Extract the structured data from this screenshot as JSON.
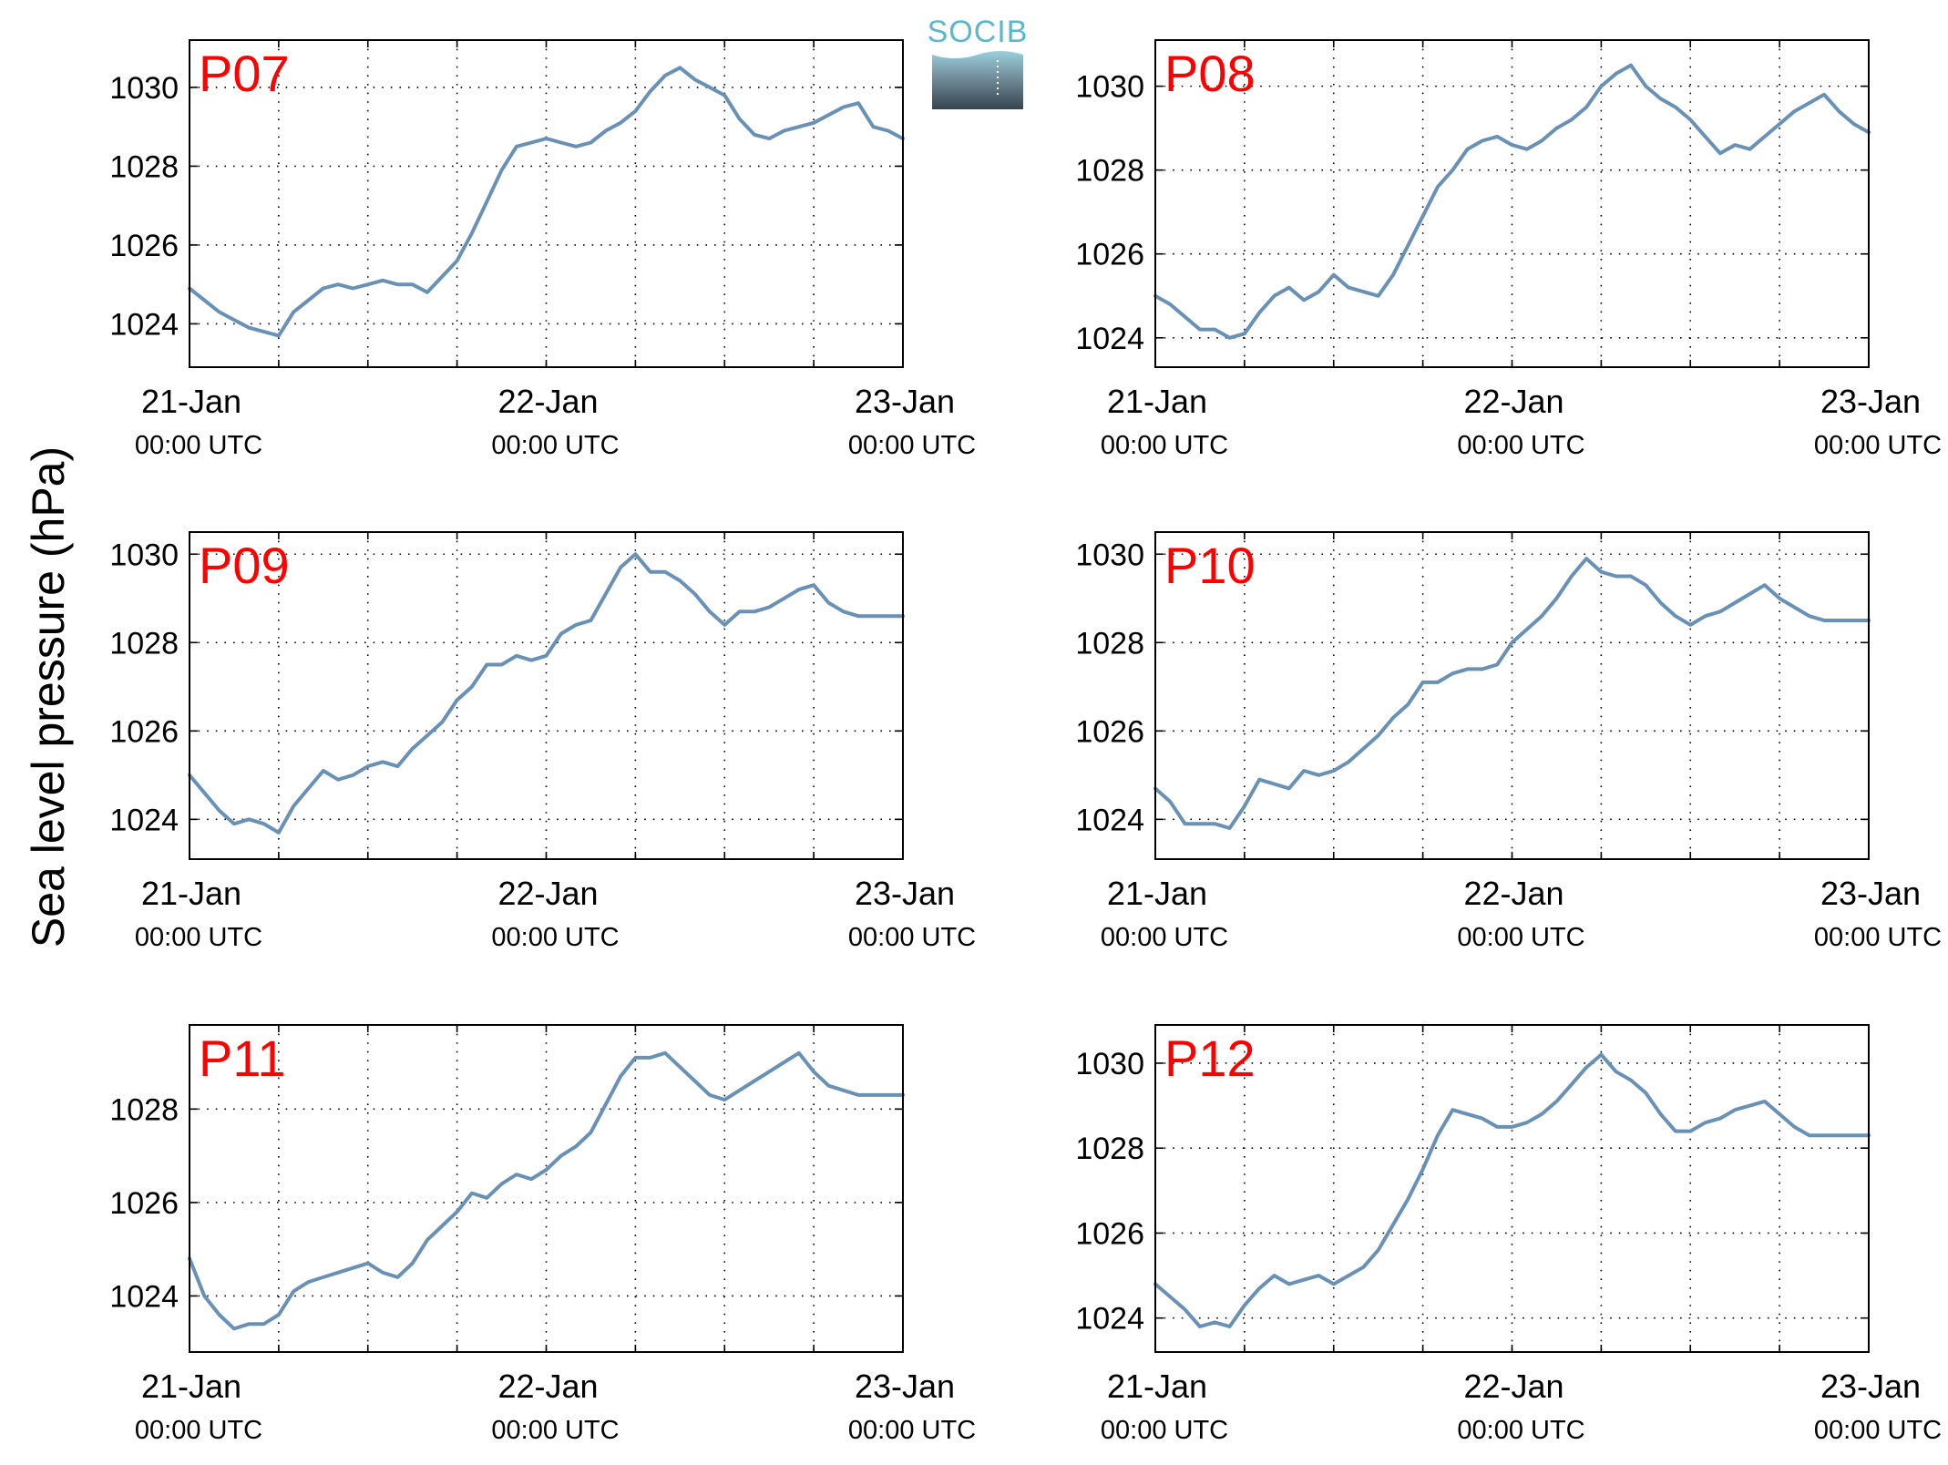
{
  "figure": {
    "ylabel": "Sea level pressure (hPa)",
    "logo_text": "SOCIB",
    "series_color": "#6891b5",
    "label_color": "#ff0000",
    "logo_colors": {
      "text": "#5ab8cc",
      "top": "#9ad0de",
      "mid": "#6f8694",
      "bottom": "#34454f"
    }
  },
  "chart_data": [
    {
      "type": "line",
      "label": "P07",
      "x_ticks": [
        {
          "date": "21-Jan",
          "time": "00:00 UTC"
        },
        {
          "date": "22-Jan",
          "time": "00:00 UTC"
        },
        {
          "date": "23-Jan",
          "time": "00:00 UTC"
        }
      ],
      "xlim": [
        "2014-01-21 00:00",
        "2014-01-23 00:00"
      ],
      "ylim": [
        1022.9,
        1031.2
      ],
      "yticks": [
        1024,
        1026,
        1028,
        1030
      ],
      "grid": true,
      "x_hours": [
        0,
        1,
        2,
        3,
        4,
        5,
        6,
        7,
        8,
        9,
        10,
        11,
        12,
        13,
        14,
        15,
        16,
        17,
        18,
        19,
        20,
        21,
        22,
        23,
        24,
        25,
        26,
        27,
        28,
        29,
        30,
        31,
        32,
        33,
        34,
        35,
        36,
        37,
        38,
        39,
        40,
        41,
        42,
        43,
        44,
        45,
        46,
        47,
        48
      ],
      "y": [
        1024.9,
        1024.6,
        1024.3,
        1024.1,
        1023.9,
        1023.8,
        1023.7,
        1024.3,
        1024.6,
        1024.9,
        1025.0,
        1024.9,
        1025.0,
        1025.1,
        1025.0,
        1025.0,
        1024.8,
        1025.2,
        1025.6,
        1026.3,
        1027.1,
        1027.9,
        1028.5,
        1028.6,
        1028.7,
        1028.6,
        1028.5,
        1028.6,
        1028.9,
        1029.1,
        1029.4,
        1029.9,
        1030.3,
        1030.5,
        1030.2,
        1030.0,
        1029.8,
        1029.2,
        1028.8,
        1028.7,
        1028.9,
        1029.0,
        1029.1,
        1029.3,
        1029.5,
        1029.6,
        1029.0,
        1028.9,
        1028.7
      ]
    },
    {
      "type": "line",
      "label": "P08",
      "x_ticks": [
        {
          "date": "21-Jan",
          "time": "00:00 UTC"
        },
        {
          "date": "22-Jan",
          "time": "00:00 UTC"
        },
        {
          "date": "23-Jan",
          "time": "00:00 UTC"
        }
      ],
      "xlim": [
        "2014-01-21 00:00",
        "2014-01-23 00:00"
      ],
      "ylim": [
        1023.3,
        1031.1
      ],
      "yticks": [
        1024,
        1026,
        1028,
        1030
      ],
      "grid": true,
      "x_hours": [
        0,
        1,
        2,
        3,
        4,
        5,
        6,
        7,
        8,
        9,
        10,
        11,
        12,
        13,
        14,
        15,
        16,
        17,
        18,
        19,
        20,
        21,
        22,
        23,
        24,
        25,
        26,
        27,
        28,
        29,
        30,
        31,
        32,
        33,
        34,
        35,
        36,
        37,
        38,
        39,
        40,
        41,
        42,
        43,
        44,
        45,
        46,
        47,
        48
      ],
      "y": [
        1025.0,
        1024.8,
        1024.5,
        1024.2,
        1024.2,
        1024.0,
        1024.1,
        1024.6,
        1025.0,
        1025.2,
        1024.9,
        1025.1,
        1025.5,
        1025.2,
        1025.1,
        1025.0,
        1025.5,
        1026.2,
        1026.9,
        1027.6,
        1028.0,
        1028.5,
        1028.7,
        1028.8,
        1028.6,
        1028.5,
        1028.7,
        1029.0,
        1029.2,
        1029.5,
        1030.0,
        1030.3,
        1030.5,
        1030.0,
        1029.7,
        1029.5,
        1029.2,
        1028.8,
        1028.4,
        1028.6,
        1028.5,
        1028.8,
        1029.1,
        1029.4,
        1029.6,
        1029.8,
        1029.4,
        1029.1,
        1028.9
      ]
    },
    {
      "type": "line",
      "label": "P09",
      "x_ticks": [
        {
          "date": "21-Jan",
          "time": "00:00 UTC"
        },
        {
          "date": "22-Jan",
          "time": "00:00 UTC"
        },
        {
          "date": "23-Jan",
          "time": "00:00 UTC"
        }
      ],
      "xlim": [
        "2014-01-21 00:00",
        "2014-01-23 00:00"
      ],
      "ylim": [
        1023.1,
        1030.5
      ],
      "yticks": [
        1024,
        1026,
        1028,
        1030
      ],
      "grid": true,
      "x_hours": [
        0,
        1,
        2,
        3,
        4,
        5,
        6,
        7,
        8,
        9,
        10,
        11,
        12,
        13,
        14,
        15,
        16,
        17,
        18,
        19,
        20,
        21,
        22,
        23,
        24,
        25,
        26,
        27,
        28,
        29,
        30,
        31,
        32,
        33,
        34,
        35,
        36,
        37,
        38,
        39,
        40,
        41,
        42,
        43,
        44,
        45,
        46,
        47,
        48
      ],
      "y": [
        1025.0,
        1024.6,
        1024.2,
        1023.9,
        1024.0,
        1023.9,
        1023.7,
        1024.3,
        1024.7,
        1025.1,
        1024.9,
        1025.0,
        1025.2,
        1025.3,
        1025.2,
        1025.6,
        1025.9,
        1026.2,
        1026.7,
        1027.0,
        1027.5,
        1027.5,
        1027.7,
        1027.6,
        1027.7,
        1028.2,
        1028.4,
        1028.5,
        1029.1,
        1029.7,
        1030.0,
        1029.6,
        1029.6,
        1029.4,
        1029.1,
        1028.7,
        1028.4,
        1028.7,
        1028.7,
        1028.8,
        1029.0,
        1029.2,
        1029.3,
        1028.9,
        1028.7,
        1028.6,
        1028.6,
        1028.6,
        1028.6
      ]
    },
    {
      "type": "line",
      "label": "P10",
      "x_ticks": [
        {
          "date": "21-Jan",
          "time": "00:00 UTC"
        },
        {
          "date": "22-Jan",
          "time": "00:00 UTC"
        },
        {
          "date": "23-Jan",
          "time": "00:00 UTC"
        }
      ],
      "xlim": [
        "2014-01-21 00:00",
        "2014-01-23 00:00"
      ],
      "ylim": [
        1023.1,
        1030.5
      ],
      "yticks": [
        1024,
        1026,
        1028,
        1030
      ],
      "grid": true,
      "x_hours": [
        0,
        1,
        2,
        3,
        4,
        5,
        6,
        7,
        8,
        9,
        10,
        11,
        12,
        13,
        14,
        15,
        16,
        17,
        18,
        19,
        20,
        21,
        22,
        23,
        24,
        25,
        26,
        27,
        28,
        29,
        30,
        31,
        32,
        33,
        34,
        35,
        36,
        37,
        38,
        39,
        40,
        41,
        42,
        43,
        44,
        45,
        46,
        47,
        48
      ],
      "y": [
        1024.7,
        1024.4,
        1023.9,
        1023.9,
        1023.9,
        1023.8,
        1024.3,
        1024.9,
        1024.8,
        1024.7,
        1025.1,
        1025.0,
        1025.1,
        1025.3,
        1025.6,
        1025.9,
        1026.3,
        1026.6,
        1027.1,
        1027.1,
        1027.3,
        1027.4,
        1027.4,
        1027.5,
        1028.0,
        1028.3,
        1028.6,
        1029.0,
        1029.5,
        1029.9,
        1029.6,
        1029.5,
        1029.5,
        1029.3,
        1028.9,
        1028.6,
        1028.4,
        1028.6,
        1028.7,
        1028.9,
        1029.1,
        1029.3,
        1029.0,
        1028.8,
        1028.6,
        1028.5,
        1028.5,
        1028.5,
        1028.5
      ]
    },
    {
      "type": "line",
      "label": "P11",
      "x_ticks": [
        {
          "date": "21-Jan",
          "time": "00:00 UTC"
        },
        {
          "date": "22-Jan",
          "time": "00:00 UTC"
        },
        {
          "date": "23-Jan",
          "time": "00:00 UTC"
        }
      ],
      "xlim": [
        "2014-01-21 00:00",
        "2014-01-23 00:00"
      ],
      "ylim": [
        1022.8,
        1029.8
      ],
      "yticks": [
        1024,
        1026,
        1028
      ],
      "grid": true,
      "x_hours": [
        0,
        1,
        2,
        3,
        4,
        5,
        6,
        7,
        8,
        9,
        10,
        11,
        12,
        13,
        14,
        15,
        16,
        17,
        18,
        19,
        20,
        21,
        22,
        23,
        24,
        25,
        26,
        27,
        28,
        29,
        30,
        31,
        32,
        33,
        34,
        35,
        36,
        37,
        38,
        39,
        40,
        41,
        42,
        43,
        44,
        45,
        46,
        47,
        48
      ],
      "y": [
        1024.8,
        1024.0,
        1023.6,
        1023.3,
        1023.4,
        1023.4,
        1023.6,
        1024.1,
        1024.3,
        1024.4,
        1024.5,
        1024.6,
        1024.7,
        1024.5,
        1024.4,
        1024.7,
        1025.2,
        1025.5,
        1025.8,
        1026.2,
        1026.1,
        1026.4,
        1026.6,
        1026.5,
        1026.7,
        1027.0,
        1027.2,
        1027.5,
        1028.1,
        1028.7,
        1029.1,
        1029.1,
        1029.2,
        1028.9,
        1028.6,
        1028.3,
        1028.2,
        1028.4,
        1028.6,
        1028.8,
        1029.0,
        1029.2,
        1028.8,
        1028.5,
        1028.4,
        1028.3,
        1028.3,
        1028.3,
        1028.3
      ]
    },
    {
      "type": "line",
      "label": "P12",
      "x_ticks": [
        {
          "date": "21-Jan",
          "time": "00:00 UTC"
        },
        {
          "date": "22-Jan",
          "time": "00:00 UTC"
        },
        {
          "date": "23-Jan",
          "time": "00:00 UTC"
        }
      ],
      "xlim": [
        "2014-01-21 00:00",
        "2014-01-23 00:00"
      ],
      "ylim": [
        1023.2,
        1030.9
      ],
      "yticks": [
        1024,
        1026,
        1028,
        1030
      ],
      "grid": true,
      "x_hours": [
        0,
        1,
        2,
        3,
        4,
        5,
        6,
        7,
        8,
        9,
        10,
        11,
        12,
        13,
        14,
        15,
        16,
        17,
        18,
        19,
        20,
        21,
        22,
        23,
        24,
        25,
        26,
        27,
        28,
        29,
        30,
        31,
        32,
        33,
        34,
        35,
        36,
        37,
        38,
        39,
        40,
        41,
        42,
        43,
        44,
        45,
        46,
        47,
        48
      ],
      "y": [
        1024.8,
        1024.5,
        1024.2,
        1023.8,
        1023.9,
        1023.8,
        1024.3,
        1024.7,
        1025.0,
        1024.8,
        1024.9,
        1025.0,
        1024.8,
        1025.0,
        1025.2,
        1025.6,
        1026.2,
        1026.8,
        1027.5,
        1028.3,
        1028.9,
        1028.8,
        1028.7,
        1028.5,
        1028.5,
        1028.6,
        1028.8,
        1029.1,
        1029.5,
        1029.9,
        1030.2,
        1029.8,
        1029.6,
        1029.3,
        1028.8,
        1028.4,
        1028.4,
        1028.6,
        1028.7,
        1028.9,
        1029.0,
        1029.1,
        1028.8,
        1028.5,
        1028.3,
        1028.3,
        1028.3,
        1028.3,
        1028.3
      ]
    }
  ]
}
